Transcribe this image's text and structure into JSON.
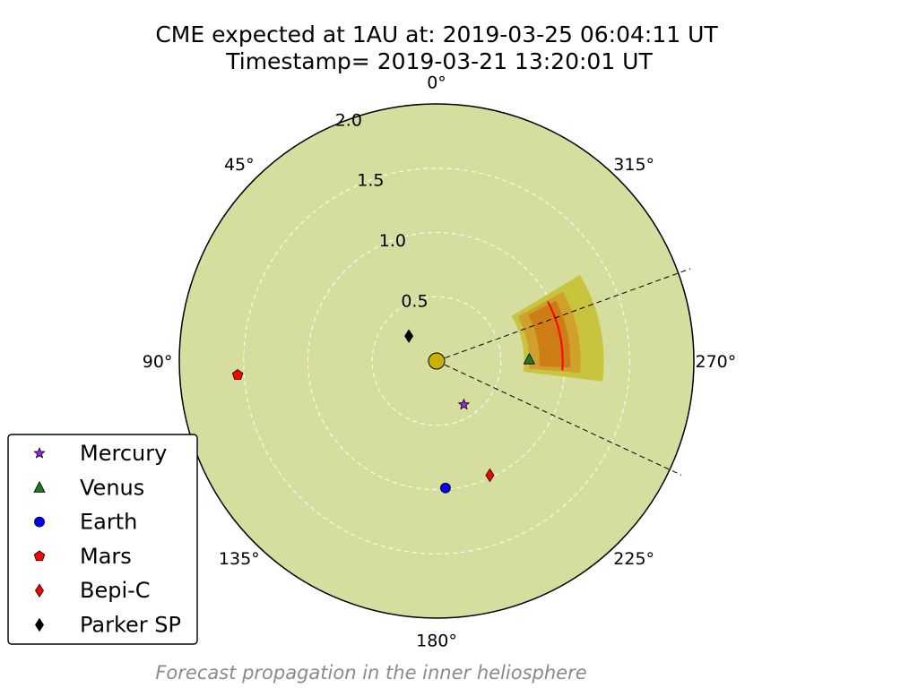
{
  "figure": {
    "caption": "Forecast propagation in the inner heliosphere"
  },
  "chart_data": {
    "type": "scatter",
    "subtype": "polar",
    "title_lines": [
      "CME expected at 1AU at: 2019-03-25 06:04:11 UT",
      "Timestamp= 2019-03-21 13:20:01 UT"
    ],
    "theta_zero": "top",
    "theta_direction": "counterclockwise",
    "theta_ticks": [
      {
        "deg": 0,
        "label": "0°"
      },
      {
        "deg": 45,
        "label": "45°"
      },
      {
        "deg": 90,
        "label": "90°"
      },
      {
        "deg": 135,
        "label": "135°"
      },
      {
        "deg": 180,
        "label": "180°"
      },
      {
        "deg": 225,
        "label": "225°"
      },
      {
        "deg": 270,
        "label": "270°"
      },
      {
        "deg": 315,
        "label": "315°"
      }
    ],
    "r_ticks": [
      {
        "value": 0.5,
        "label": "0.5"
      },
      {
        "value": 1.0,
        "label": "1.0"
      },
      {
        "value": 1.5,
        "label": "1.5"
      },
      {
        "value": 2.0,
        "label": "2.0"
      }
    ],
    "rlim": [
      0,
      2.0
    ],
    "r_label_angle_deg": 20,
    "grid": true,
    "background_color": "#d5de9e",
    "sun": {
      "r": 0,
      "theta": 0,
      "color": "#c8b400"
    },
    "cme": {
      "direction_deg": 282,
      "half_width_deg": 19,
      "front_r": 0.98,
      "band_r": [
        0.68,
        1.3
      ],
      "band_r_inner": [
        0.72,
        1.12
      ],
      "band_colors": [
        "#c8c238",
        "#d09a28",
        "#cc7010"
      ],
      "front_color": "#ff0000"
    },
    "boundary_lines": [
      {
        "theta_deg": 290,
        "r_end": 2.1
      },
      {
        "theta_deg": 245,
        "r_end": 2.1
      }
    ],
    "series": [
      {
        "name": "Mercury",
        "marker": "star",
        "color": "#a020f0",
        "r": 0.4,
        "theta_deg": 212
      },
      {
        "name": "Venus",
        "marker": "triangle",
        "color": "#1e7a1e",
        "r": 0.72,
        "theta_deg": 271
      },
      {
        "name": "Earth",
        "marker": "circle",
        "color": "#0000ff",
        "r": 0.99,
        "theta_deg": 184
      },
      {
        "name": "Mars",
        "marker": "pentagon",
        "color": "#ff0000",
        "r": 1.55,
        "theta_deg": 94
      },
      {
        "name": "Bepi-C",
        "marker": "diamond",
        "color": "#ff0000",
        "r": 0.98,
        "theta_deg": 205
      },
      {
        "name": "Parker SP",
        "marker": "diamond",
        "color": "#000000",
        "r": 0.29,
        "theta_deg": 48
      }
    ],
    "legend_position": "lower-left"
  }
}
